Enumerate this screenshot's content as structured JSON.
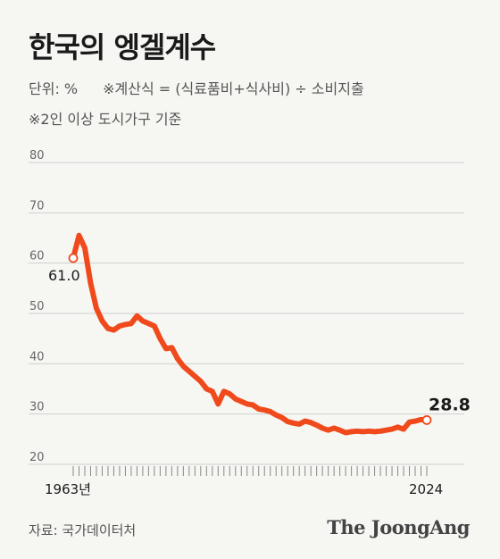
{
  "title": "한국의 엥겔계수",
  "unit": "단위: %",
  "formula": "※계산식 = (식료품비+식사비) ÷ 소비지출",
  "note": "※2인 이상 도시가구 기준",
  "source": "자료: 국가데이터처",
  "brand": "The JoongAng",
  "colors": {
    "line": "#f04a1c",
    "grid": "#cfcfcf",
    "text": "#1a1a1a"
  },
  "chart_data": {
    "type": "line",
    "x_start_label": "1963년",
    "x_end_label": "2024",
    "yticks": [
      20,
      30,
      40,
      50,
      60,
      70,
      80
    ],
    "ylim": [
      20,
      80
    ],
    "xlim": [
      1963,
      2024
    ],
    "start_label": "61.0",
    "end_label": "28.8",
    "x": [
      1963,
      1964,
      1965,
      1966,
      1967,
      1968,
      1969,
      1970,
      1971,
      1972,
      1973,
      1974,
      1975,
      1976,
      1977,
      1978,
      1979,
      1980,
      1981,
      1982,
      1983,
      1984,
      1985,
      1986,
      1987,
      1988,
      1989,
      1990,
      1991,
      1992,
      1993,
      1994,
      1995,
      1996,
      1997,
      1998,
      1999,
      2000,
      2001,
      2002,
      2003,
      2004,
      2005,
      2006,
      2007,
      2008,
      2009,
      2010,
      2011,
      2012,
      2013,
      2014,
      2015,
      2016,
      2017,
      2018,
      2019,
      2020,
      2021,
      2022,
      2023,
      2024
    ],
    "values": [
      61.0,
      65.5,
      63.0,
      56.0,
      51.0,
      48.5,
      47.0,
      46.7,
      47.5,
      47.8,
      48.0,
      49.5,
      48.5,
      48.0,
      47.5,
      45.0,
      43.0,
      43.2,
      41.0,
      39.5,
      38.5,
      37.5,
      36.5,
      35.0,
      34.5,
      32.0,
      34.5,
      34.0,
      33.0,
      32.5,
      32.0,
      31.8,
      31.0,
      30.8,
      30.5,
      29.8,
      29.3,
      28.5,
      28.2,
      28.0,
      28.6,
      28.3,
      27.8,
      27.2,
      26.8,
      27.2,
      26.8,
      26.3,
      26.5,
      26.6,
      26.5,
      26.6,
      26.5,
      26.6,
      26.8,
      27.0,
      27.4,
      27.0,
      28.4,
      28.6,
      28.9,
      28.8
    ]
  }
}
